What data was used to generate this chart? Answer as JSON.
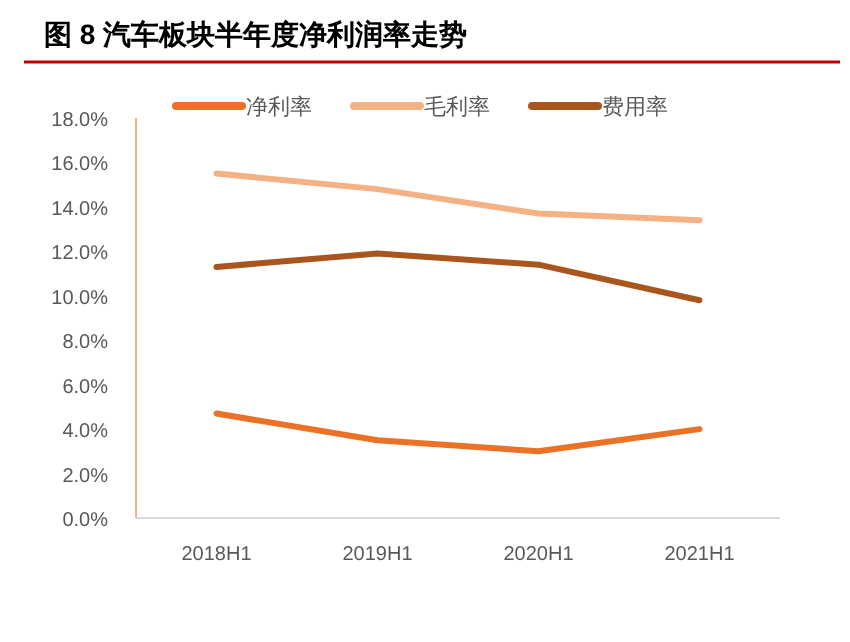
{
  "chart_data": {
    "type": "line",
    "title": "图 8 汽车板块半年度净利润率走势",
    "categories": [
      "2018H1",
      "2019H1",
      "2020H1",
      "2021H1"
    ],
    "series": [
      {
        "name": "净利率",
        "color": "#ea7125",
        "values": [
          4.7,
          3.5,
          3.0,
          4.0
        ]
      },
      {
        "name": "毛利率",
        "color": "#f4b183",
        "values": [
          15.5,
          14.8,
          13.7,
          13.4
        ]
      },
      {
        "name": "费用率",
        "color": "#a9561e",
        "values": [
          11.3,
          11.9,
          11.4,
          9.8
        ]
      }
    ],
    "ylim": [
      0,
      18
    ],
    "yticks": [
      {
        "value": 0,
        "label": "0.0%"
      },
      {
        "value": 2,
        "label": "2.0%"
      },
      {
        "value": 4,
        "label": "4.0%"
      },
      {
        "value": 6,
        "label": "6.0%"
      },
      {
        "value": 8,
        "label": "8.0%"
      },
      {
        "value": 10,
        "label": "10.0%"
      },
      {
        "value": 12,
        "label": "12.0%"
      },
      {
        "value": 14,
        "label": "14.0%"
      },
      {
        "value": 16,
        "label": "16.0%"
      },
      {
        "value": 18,
        "label": "18.0%"
      }
    ],
    "grid": false,
    "legend": "top"
  }
}
